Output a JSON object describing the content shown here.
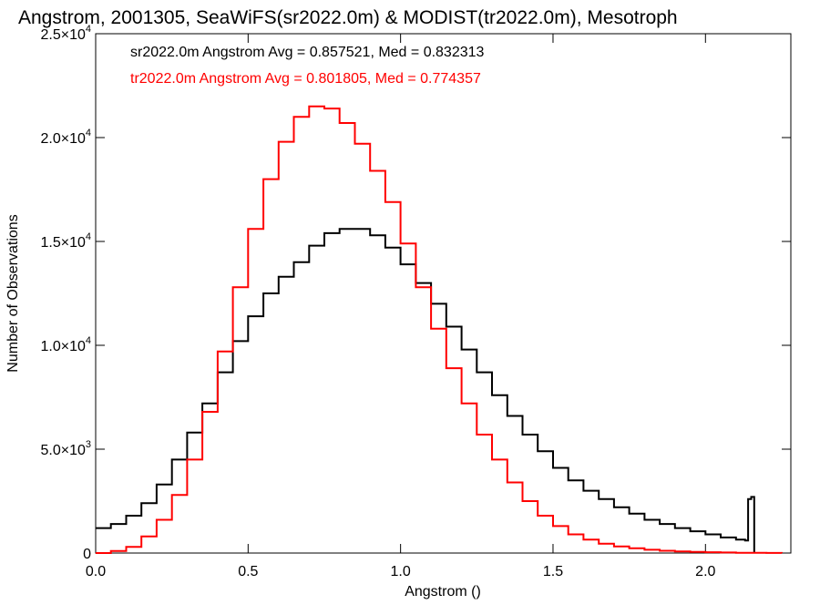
{
  "chart_data": {
    "type": "line",
    "title": "Angstrom, 2001305, SeaWiFS(sr2022.0m) & MODIST(tr2022.0m), Mesotroph",
    "xlabel": "Angstrom ()",
    "ylabel": "Number of Observations",
    "xlim": [
      0.0,
      2.28
    ],
    "ylim": [
      0,
      25000
    ],
    "x_ticks": [
      {
        "value": 0.0,
        "label": "0.0"
      },
      {
        "value": 0.5,
        "label": "0.5"
      },
      {
        "value": 1.0,
        "label": "1.0"
      },
      {
        "value": 1.5,
        "label": "1.5"
      },
      {
        "value": 2.0,
        "label": "2.0"
      }
    ],
    "y_ticks": [
      {
        "value": 0,
        "base": "0",
        "exp": ""
      },
      {
        "value": 5000,
        "base": "5.0×10",
        "exp": "3"
      },
      {
        "value": 10000,
        "base": "1.0×10",
        "exp": "4"
      },
      {
        "value": 15000,
        "base": "1.5×10",
        "exp": "4"
      },
      {
        "value": 20000,
        "base": "2.0×10",
        "exp": "4"
      },
      {
        "value": 25000,
        "base": "2.5×10",
        "exp": "4"
      }
    ],
    "annotations": [
      {
        "text": "sr2022.0m Angstrom Avg = 0.857521, Med = 0.832313",
        "color": "#000000"
      },
      {
        "text": "tr2022.0m Angstrom Avg = 0.801805, Med = 0.774357",
        "color": "#ff0000"
      }
    ],
    "series": [
      {
        "name": "sr2022.0m",
        "color": "#000000",
        "step": true,
        "points": [
          [
            0.0,
            1200
          ],
          [
            0.05,
            1400
          ],
          [
            0.1,
            1800
          ],
          [
            0.15,
            2400
          ],
          [
            0.2,
            3300
          ],
          [
            0.25,
            4500
          ],
          [
            0.3,
            5800
          ],
          [
            0.35,
            7200
          ],
          [
            0.4,
            8700
          ],
          [
            0.45,
            10200
          ],
          [
            0.5,
            11400
          ],
          [
            0.55,
            12500
          ],
          [
            0.6,
            13300
          ],
          [
            0.65,
            14000
          ],
          [
            0.7,
            14800
          ],
          [
            0.75,
            15400
          ],
          [
            0.8,
            15600
          ],
          [
            0.85,
            15600
          ],
          [
            0.9,
            15300
          ],
          [
            0.95,
            14700
          ],
          [
            1.0,
            13900
          ],
          [
            1.05,
            13000
          ],
          [
            1.1,
            12000
          ],
          [
            1.15,
            10900
          ],
          [
            1.2,
            9800
          ],
          [
            1.25,
            8700
          ],
          [
            1.3,
            7600
          ],
          [
            1.35,
            6600
          ],
          [
            1.4,
            5700
          ],
          [
            1.45,
            4900
          ],
          [
            1.5,
            4100
          ],
          [
            1.55,
            3500
          ],
          [
            1.6,
            3000
          ],
          [
            1.65,
            2600
          ],
          [
            1.7,
            2200
          ],
          [
            1.75,
            1900
          ],
          [
            1.8,
            1600
          ],
          [
            1.85,
            1400
          ],
          [
            1.9,
            1200
          ],
          [
            1.95,
            1050
          ],
          [
            2.0,
            900
          ],
          [
            2.05,
            750
          ],
          [
            2.1,
            650
          ],
          [
            2.13,
            600
          ],
          [
            2.14,
            2600
          ],
          [
            2.15,
            2700
          ],
          [
            2.16,
            0
          ]
        ]
      },
      {
        "name": "tr2022.0m",
        "color": "#ff0000",
        "step": true,
        "points": [
          [
            0.0,
            0
          ],
          [
            0.05,
            100
          ],
          [
            0.1,
            300
          ],
          [
            0.15,
            800
          ],
          [
            0.2,
            1600
          ],
          [
            0.25,
            2800
          ],
          [
            0.3,
            4500
          ],
          [
            0.35,
            6800
          ],
          [
            0.4,
            9700
          ],
          [
            0.45,
            12800
          ],
          [
            0.5,
            15600
          ],
          [
            0.55,
            18000
          ],
          [
            0.6,
            19800
          ],
          [
            0.65,
            21000
          ],
          [
            0.7,
            21500
          ],
          [
            0.75,
            21400
          ],
          [
            0.8,
            20700
          ],
          [
            0.85,
            19700
          ],
          [
            0.9,
            18400
          ],
          [
            0.95,
            16900
          ],
          [
            1.0,
            14900
          ],
          [
            1.05,
            12800
          ],
          [
            1.1,
            10800
          ],
          [
            1.15,
            8900
          ],
          [
            1.2,
            7200
          ],
          [
            1.25,
            5700
          ],
          [
            1.3,
            4500
          ],
          [
            1.35,
            3400
          ],
          [
            1.4,
            2500
          ],
          [
            1.45,
            1800
          ],
          [
            1.5,
            1300
          ],
          [
            1.55,
            900
          ],
          [
            1.6,
            650
          ],
          [
            1.65,
            450
          ],
          [
            1.7,
            320
          ],
          [
            1.75,
            230
          ],
          [
            1.8,
            160
          ],
          [
            1.85,
            110
          ],
          [
            1.9,
            80
          ],
          [
            1.95,
            55
          ],
          [
            2.0,
            40
          ],
          [
            2.05,
            25
          ],
          [
            2.1,
            15
          ],
          [
            2.15,
            8
          ],
          [
            2.2,
            3
          ],
          [
            2.25,
            0
          ]
        ]
      }
    ]
  }
}
